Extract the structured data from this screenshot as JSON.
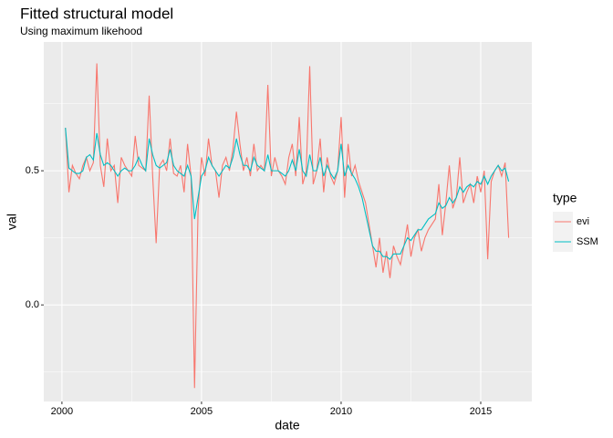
{
  "chart_data": {
    "type": "line",
    "title": "Fitted structural model",
    "subtitle": "Using maximum likehood",
    "x_label": "date",
    "y_label": "val",
    "legend_title": "type",
    "legend_position": "right",
    "grid": true,
    "xlim": [
      1999.35,
      2016.83
    ],
    "xticks": [
      2000,
      2005,
      2010,
      2015
    ],
    "ylim": [
      -0.36,
      0.98
    ],
    "yticks": [
      {
        "value": 0,
        "label": "0.0"
      },
      {
        "value": 0.5,
        "label": "0.5"
      }
    ],
    "x": [
      2000.125,
      2000.25,
      2000.375,
      2000.5,
      2000.625,
      2000.75,
      2000.875,
      2001,
      2001.125,
      2001.25,
      2001.375,
      2001.5,
      2001.625,
      2001.75,
      2001.875,
      2002,
      2002.125,
      2002.25,
      2002.375,
      2002.5,
      2002.625,
      2002.75,
      2002.875,
      2003,
      2003.125,
      2003.25,
      2003.375,
      2003.5,
      2003.625,
      2003.75,
      2003.875,
      2004,
      2004.125,
      2004.25,
      2004.375,
      2004.5,
      2004.625,
      2004.75,
      2004.875,
      2005,
      2005.125,
      2005.25,
      2005.375,
      2005.5,
      2005.625,
      2005.75,
      2005.875,
      2006,
      2006.125,
      2006.25,
      2006.375,
      2006.5,
      2006.625,
      2006.75,
      2006.875,
      2007,
      2007.125,
      2007.25,
      2007.375,
      2007.5,
      2007.625,
      2007.75,
      2007.875,
      2008,
      2008.125,
      2008.25,
      2008.375,
      2008.5,
      2008.625,
      2008.75,
      2008.875,
      2009,
      2009.125,
      2009.25,
      2009.375,
      2009.5,
      2009.625,
      2009.75,
      2009.875,
      2010,
      2010.125,
      2010.25,
      2010.375,
      2010.5,
      2010.625,
      2010.75,
      2010.875,
      2011,
      2011.125,
      2011.25,
      2011.375,
      2011.5,
      2011.625,
      2011.75,
      2011.875,
      2012,
      2012.125,
      2012.25,
      2012.375,
      2012.5,
      2012.625,
      2012.75,
      2012.875,
      2013,
      2013.125,
      2013.25,
      2013.375,
      2013.5,
      2013.625,
      2013.75,
      2013.875,
      2014,
      2014.125,
      2014.25,
      2014.375,
      2014.5,
      2014.625,
      2014.75,
      2014.875,
      2015,
      2015.125,
      2015.25,
      2015.375,
      2015.5,
      2015.625,
      2015.75,
      2015.875,
      2016
    ],
    "series": [
      {
        "name": "evi",
        "color": "#F8766D",
        "values": [
          0.66,
          0.42,
          0.52,
          0.49,
          0.47,
          0.52,
          0.55,
          0.5,
          0.53,
          0.9,
          0.52,
          0.44,
          0.62,
          0.5,
          0.52,
          0.38,
          0.55,
          0.52,
          0.5,
          0.48,
          0.63,
          0.52,
          0.51,
          0.5,
          0.78,
          0.48,
          0.23,
          0.52,
          0.54,
          0.5,
          0.62,
          0.49,
          0.48,
          0.52,
          0.42,
          0.6,
          0.48,
          -0.31,
          0.35,
          0.55,
          0.48,
          0.62,
          0.52,
          0.5,
          0.4,
          0.52,
          0.55,
          0.5,
          0.58,
          0.72,
          0.6,
          0.5,
          0.55,
          0.48,
          0.6,
          0.5,
          0.52,
          0.5,
          0.82,
          0.48,
          0.55,
          0.5,
          0.48,
          0.45,
          0.55,
          0.6,
          0.48,
          0.7,
          0.45,
          0.5,
          0.89,
          0.45,
          0.5,
          0.62,
          0.42,
          0.55,
          0.48,
          0.45,
          0.5,
          0.7,
          0.4,
          0.6,
          0.48,
          0.52,
          0.46,
          0.42,
          0.38,
          0.3,
          0.22,
          0.14,
          0.25,
          0.12,
          0.2,
          0.1,
          0.22,
          0.18,
          0.15,
          0.22,
          0.3,
          0.18,
          0.25,
          0.28,
          0.2,
          0.25,
          0.28,
          0.3,
          0.32,
          0.45,
          0.26,
          0.38,
          0.52,
          0.36,
          0.4,
          0.55,
          0.38,
          0.42,
          0.45,
          0.38,
          0.48,
          0.42,
          0.5,
          0.17,
          0.46,
          0.5,
          0.52,
          0.48,
          0.53,
          0.25
        ]
      },
      {
        "name": "SSM",
        "color": "#00BFC4",
        "values": [
          0.66,
          0.51,
          0.5,
          0.49,
          0.49,
          0.5,
          0.55,
          0.56,
          0.54,
          0.64,
          0.56,
          0.52,
          0.53,
          0.52,
          0.5,
          0.48,
          0.5,
          0.51,
          0.5,
          0.5,
          0.52,
          0.55,
          0.52,
          0.5,
          0.62,
          0.56,
          0.52,
          0.51,
          0.52,
          0.53,
          0.58,
          0.52,
          0.5,
          0.49,
          0.48,
          0.52,
          0.48,
          0.32,
          0.4,
          0.48,
          0.5,
          0.55,
          0.52,
          0.5,
          0.48,
          0.5,
          0.52,
          0.51,
          0.55,
          0.62,
          0.56,
          0.52,
          0.52,
          0.5,
          0.55,
          0.52,
          0.51,
          0.5,
          0.56,
          0.5,
          0.5,
          0.5,
          0.49,
          0.48,
          0.5,
          0.54,
          0.5,
          0.58,
          0.5,
          0.48,
          0.56,
          0.5,
          0.5,
          0.55,
          0.48,
          0.52,
          0.49,
          0.47,
          0.5,
          0.6,
          0.48,
          0.52,
          0.49,
          0.47,
          0.44,
          0.4,
          0.34,
          0.28,
          0.22,
          0.2,
          0.2,
          0.18,
          0.18,
          0.17,
          0.19,
          0.19,
          0.19,
          0.22,
          0.25,
          0.24,
          0.26,
          0.28,
          0.28,
          0.3,
          0.32,
          0.33,
          0.34,
          0.38,
          0.36,
          0.37,
          0.4,
          0.38,
          0.4,
          0.44,
          0.42,
          0.44,
          0.45,
          0.44,
          0.46,
          0.45,
          0.48,
          0.45,
          0.48,
          0.5,
          0.52,
          0.5,
          0.51,
          0.46
        ]
      }
    ]
  }
}
